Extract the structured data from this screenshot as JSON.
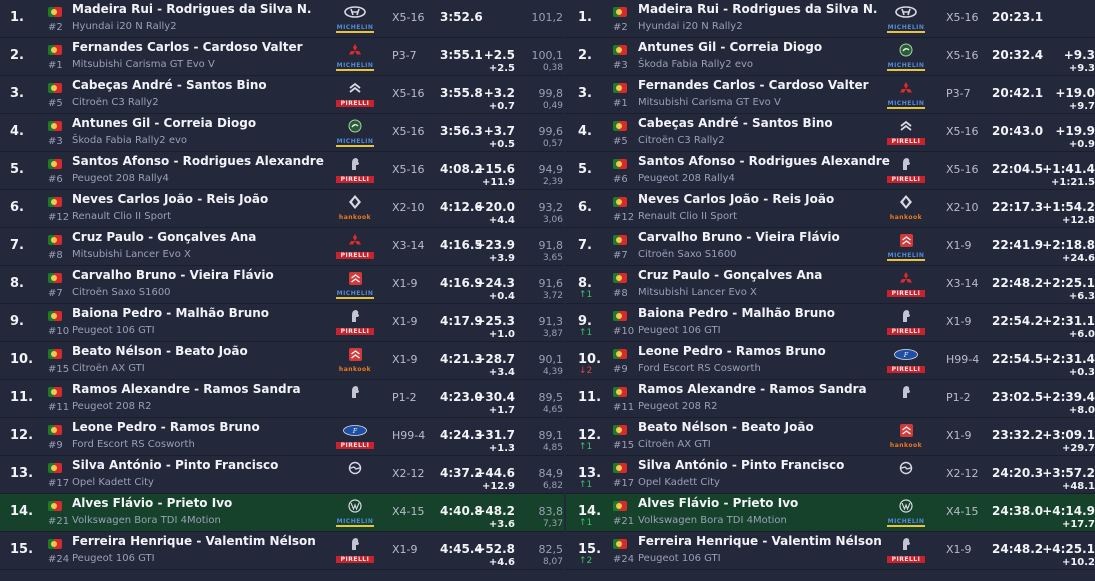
{
  "stage": {
    "rows": [
      {
        "pos": "1.",
        "num": "#2",
        "names": "Madeira Rui - Rodrigues da Silva N.",
        "car": "Hyundai i20 N Rally2",
        "brand": "hyundai-icon",
        "tyre": "michelin",
        "tyre_label": "MICHELIN",
        "cls": "X5-16",
        "time": "3:52.6",
        "gap": "",
        "diff": "",
        "speed": "101,2",
        "spdiff": ""
      },
      {
        "pos": "2.",
        "num": "#1",
        "names": "Fernandes Carlos - Cardoso Valter",
        "car": "Mitsubishi Carisma GT Evo V",
        "brand": "mitsubishi-icon",
        "tyre": "michelin",
        "tyre_label": "MICHELIN",
        "cls": "P3-7",
        "time": "3:55.1",
        "gap": "+2.5",
        "diff": "+2.5",
        "speed": "100,1",
        "spdiff": "0,38"
      },
      {
        "pos": "3.",
        "num": "#5",
        "names": "Cabeças André - Santos Bino",
        "car": "Citroën C3 Rally2",
        "brand": "citroen-icon",
        "tyre": "pirelli",
        "tyre_label": "PIRELLI",
        "cls": "X5-16",
        "time": "3:55.8",
        "gap": "+3.2",
        "diff": "+0.7",
        "speed": "99,8",
        "spdiff": "0,49"
      },
      {
        "pos": "4.",
        "num": "#3",
        "names": "Antunes Gil - Correia Diogo",
        "car": "Škoda Fabia Rally2 evo",
        "brand": "skoda-icon",
        "tyre": "michelin",
        "tyre_label": "MICHELIN",
        "cls": "X5-16",
        "time": "3:56.3",
        "gap": "+3.7",
        "diff": "+0.5",
        "speed": "99,6",
        "spdiff": "0,57"
      },
      {
        "pos": "5.",
        "num": "#6",
        "names": "Santos Afonso - Rodrigues Alexandre",
        "car": "Peugeot 208 Rally4",
        "brand": "peugeot-icon",
        "tyre": "pirelli",
        "tyre_label": "PIRELLI",
        "cls": "X5-16",
        "time": "4:08.2",
        "gap": "+15.6",
        "diff": "+11.9",
        "speed": "94,9",
        "spdiff": "2,39"
      },
      {
        "pos": "6.",
        "num": "#12",
        "names": "Neves Carlos João - Reis João",
        "car": "Renault Clio II Sport",
        "brand": "renault-icon",
        "tyre": "hankook",
        "tyre_label": "hankook",
        "cls": "X2-10",
        "time": "4:12.6",
        "gap": "+20.0",
        "diff": "+4.4",
        "speed": "93,2",
        "spdiff": "3,06"
      },
      {
        "pos": "7.",
        "num": "#8",
        "names": "Cruz Paulo - Gonçalves Ana",
        "car": "Mitsubishi Lancer Evo X",
        "brand": "mitsubishi-icon",
        "tyre": "pirelli",
        "tyre_label": "PIRELLI",
        "cls": "X3-14",
        "time": "4:16.5",
        "gap": "+23.9",
        "diff": "+3.9",
        "speed": "91,8",
        "spdiff": "3,65"
      },
      {
        "pos": "8.",
        "num": "#7",
        "names": "Carvalho Bruno - Vieira Flávio",
        "car": "Citroën Saxo S1600",
        "brand": "citroen-red-icon",
        "tyre": "michelin",
        "tyre_label": "MICHELIN",
        "cls": "X1-9",
        "time": "4:16.9",
        "gap": "+24.3",
        "diff": "+0.4",
        "speed": "91,6",
        "spdiff": "3,72"
      },
      {
        "pos": "9.",
        "num": "#10",
        "names": "Baiona Pedro - Malhão Bruno",
        "car": "Peugeot 106 GTI",
        "brand": "peugeot-icon",
        "tyre": "pirelli",
        "tyre_label": "PIRELLI",
        "cls": "X1-9",
        "time": "4:17.9",
        "gap": "+25.3",
        "diff": "+1.0",
        "speed": "91,3",
        "spdiff": "3,87"
      },
      {
        "pos": "10.",
        "num": "#15",
        "names": "Beato Nélson - Beato João",
        "car": "Citroën AX GTI",
        "brand": "citroen-red-icon",
        "tyre": "hankook",
        "tyre_label": "hankook",
        "cls": "X1-9",
        "time": "4:21.3",
        "gap": "+28.7",
        "diff": "+3.4",
        "speed": "90,1",
        "spdiff": "4,39"
      },
      {
        "pos": "11.",
        "num": "#11",
        "names": "Ramos Alexandre - Ramos Sandra",
        "car": "Peugeot 208 R2",
        "brand": "peugeot-icon",
        "tyre": "other",
        "tyre_label": "",
        "cls": "P1-2",
        "time": "4:23.0",
        "gap": "+30.4",
        "diff": "+1.7",
        "speed": "89,5",
        "spdiff": "4,65"
      },
      {
        "pos": "12.",
        "num": "#9",
        "names": "Leone Pedro - Ramos Bruno",
        "car": "Ford Escort RS Cosworth",
        "brand": "ford-icon",
        "tyre": "pirelli",
        "tyre_label": "PIRELLI",
        "cls": "H99-4",
        "time": "4:24.3",
        "gap": "+31.7",
        "diff": "+1.3",
        "speed": "89,1",
        "spdiff": "4,85"
      },
      {
        "pos": "13.",
        "num": "#17",
        "names": "Silva António - Pinto Francisco",
        "car": "Opel Kadett City",
        "brand": "opel-icon",
        "tyre": "xxx",
        "tyre_label": "",
        "cls": "X2-12",
        "time": "4:37.2",
        "gap": "+44.6",
        "diff": "+12.9",
        "speed": "84,9",
        "spdiff": "6,82"
      },
      {
        "pos": "14.",
        "num": "#21",
        "names": "Alves Flávio - Prieto Ivo",
        "car": "Volkswagen Bora TDI 4Motion",
        "brand": "vw-icon",
        "tyre": "michelin",
        "tyre_label": "MICHELIN",
        "cls": "X4-15",
        "time": "4:40.8",
        "gap": "+48.2",
        "diff": "+3.6",
        "speed": "83,8",
        "spdiff": "7,37",
        "hl": true
      },
      {
        "pos": "15.",
        "num": "#24",
        "names": "Ferreira Henrique - Valentim Nélson",
        "car": "Peugeot 106 GTI",
        "brand": "peugeot-icon",
        "tyre": "pirelli",
        "tyre_label": "PIRELLI",
        "cls": "X1-9",
        "time": "4:45.4",
        "gap": "+52.8",
        "diff": "+4.6",
        "speed": "82,5",
        "spdiff": "8,07"
      }
    ]
  },
  "overall": {
    "rows": [
      {
        "pos": "1.",
        "num": "#2",
        "change": "",
        "dir": "",
        "names": "Madeira Rui - Rodrigues da Silva N.",
        "car": "Hyundai i20 N Rally2",
        "brand": "hyundai-icon",
        "tyre": "michelin",
        "tyre_label": "MICHELIN",
        "cls": "X5-16",
        "time": "20:23.1",
        "gap": "",
        "diff": ""
      },
      {
        "pos": "2.",
        "num": "#3",
        "change": "",
        "dir": "",
        "names": "Antunes Gil - Correia Diogo",
        "car": "Škoda Fabia Rally2 evo",
        "brand": "skoda-icon",
        "tyre": "michelin",
        "tyre_label": "MICHELIN",
        "cls": "X5-16",
        "time": "20:32.4",
        "gap": "+9.3",
        "diff": "+9.3"
      },
      {
        "pos": "3.",
        "num": "#1",
        "change": "",
        "dir": "",
        "names": "Fernandes Carlos - Cardoso Valter",
        "car": "Mitsubishi Carisma GT Evo V",
        "brand": "mitsubishi-icon",
        "tyre": "michelin",
        "tyre_label": "MICHELIN",
        "cls": "P3-7",
        "time": "20:42.1",
        "gap": "+19.0",
        "diff": "+9.7"
      },
      {
        "pos": "4.",
        "num": "#5",
        "change": "",
        "dir": "",
        "names": "Cabeças André - Santos Bino",
        "car": "Citroën C3 Rally2",
        "brand": "citroen-icon",
        "tyre": "pirelli",
        "tyre_label": "PIRELLI",
        "cls": "X5-16",
        "time": "20:43.0",
        "gap": "+19.9",
        "diff": "+0.9"
      },
      {
        "pos": "5.",
        "num": "#6",
        "change": "",
        "dir": "",
        "names": "Santos Afonso - Rodrigues Alexandre",
        "car": "Peugeot 208 Rally4",
        "brand": "peugeot-icon",
        "tyre": "pirelli",
        "tyre_label": "PIRELLI",
        "cls": "X5-16",
        "time": "22:04.5",
        "gap": "+1:41.4",
        "diff": "+1:21.5"
      },
      {
        "pos": "6.",
        "num": "#12",
        "change": "",
        "dir": "",
        "names": "Neves Carlos João - Reis João",
        "car": "Renault Clio II Sport",
        "brand": "renault-icon",
        "tyre": "hankook",
        "tyre_label": "hankook",
        "cls": "X2-10",
        "time": "22:17.3",
        "gap": "+1:54.2",
        "diff": "+12.8"
      },
      {
        "pos": "7.",
        "num": "#7",
        "change": "",
        "dir": "",
        "names": "Carvalho Bruno - Vieira Flávio",
        "car": "Citroën Saxo S1600",
        "brand": "citroen-red-icon",
        "tyre": "michelin",
        "tyre_label": "MICHELIN",
        "cls": "X1-9",
        "time": "22:41.9",
        "gap": "+2:18.8",
        "diff": "+24.6"
      },
      {
        "pos": "8.",
        "num": "#8",
        "change": "1",
        "dir": "up",
        "names": "Cruz Paulo - Gonçalves Ana",
        "car": "Mitsubishi Lancer Evo X",
        "brand": "mitsubishi-icon",
        "tyre": "pirelli",
        "tyre_label": "PIRELLI",
        "cls": "X3-14",
        "time": "22:48.2",
        "gap": "+2:25.1",
        "diff": "+6.3"
      },
      {
        "pos": "9.",
        "num": "#10",
        "change": "1",
        "dir": "up",
        "names": "Baiona Pedro - Malhão Bruno",
        "car": "Peugeot 106 GTI",
        "brand": "peugeot-icon",
        "tyre": "pirelli",
        "tyre_label": "PIRELLI",
        "cls": "X1-9",
        "time": "22:54.2",
        "gap": "+2:31.1",
        "diff": "+6.0"
      },
      {
        "pos": "10.",
        "num": "#9",
        "change": "2",
        "dir": "down",
        "names": "Leone Pedro - Ramos Bruno",
        "car": "Ford Escort RS Cosworth",
        "brand": "ford-icon",
        "tyre": "pirelli",
        "tyre_label": "PIRELLI",
        "cls": "H99-4",
        "time": "22:54.5",
        "gap": "+2:31.4",
        "diff": "+0.3"
      },
      {
        "pos": "11.",
        "num": "#11",
        "change": "",
        "dir": "",
        "names": "Ramos Alexandre - Ramos Sandra",
        "car": "Peugeot 208 R2",
        "brand": "peugeot-icon",
        "tyre": "other",
        "tyre_label": "",
        "cls": "P1-2",
        "time": "23:02.5",
        "gap": "+2:39.4",
        "diff": "+8.0"
      },
      {
        "pos": "12.",
        "num": "#15",
        "change": "1",
        "dir": "up",
        "names": "Beato Nélson - Beato João",
        "car": "Citroën AX GTI",
        "brand": "citroen-red-icon",
        "tyre": "hankook",
        "tyre_label": "hankook",
        "cls": "X1-9",
        "time": "23:32.2",
        "gap": "+3:09.1",
        "diff": "+29.7"
      },
      {
        "pos": "13.",
        "num": "#17",
        "change": "1",
        "dir": "up",
        "names": "Silva António - Pinto Francisco",
        "car": "Opel Kadett City",
        "brand": "opel-icon",
        "tyre": "xxx",
        "tyre_label": "",
        "cls": "X2-12",
        "time": "24:20.3",
        "gap": "+3:57.2",
        "diff": "+48.1"
      },
      {
        "pos": "14.",
        "num": "#21",
        "change": "1",
        "dir": "up",
        "names": "Alves Flávio - Prieto Ivo",
        "car": "Volkswagen Bora TDI 4Motion",
        "brand": "vw-icon",
        "tyre": "michelin",
        "tyre_label": "MICHELIN",
        "cls": "X4-15",
        "time": "24:38.0",
        "gap": "+4:14.9",
        "diff": "+17.7",
        "hl": true
      },
      {
        "pos": "15.",
        "num": "#24",
        "change": "2",
        "dir": "up",
        "names": "Ferreira Henrique - Valentim Nélson",
        "car": "Peugeot 106 GTI",
        "brand": "peugeot-icon",
        "tyre": "pirelli",
        "tyre_label": "PIRELLI",
        "cls": "X1-9",
        "time": "24:48.2",
        "gap": "+4:25.1",
        "diff": "+10.2"
      }
    ]
  },
  "colors": {
    "background": "#24283b",
    "highlight": "#16422c",
    "position_up": "#3cc46a",
    "position_down": "#e04646"
  }
}
